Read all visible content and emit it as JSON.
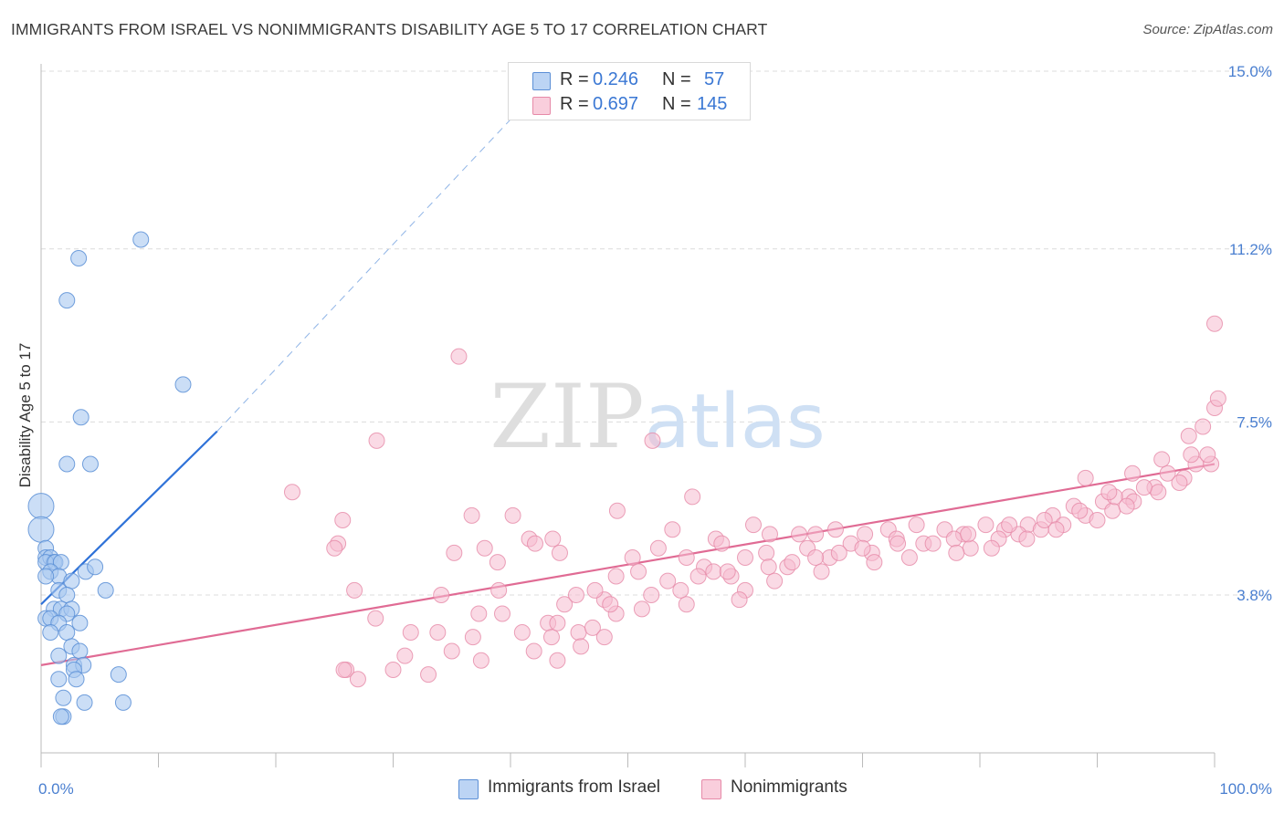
{
  "title": "IMMIGRANTS FROM ISRAEL VS NONIMMIGRANTS DISABILITY AGE 5 TO 17 CORRELATION CHART",
  "source": "Source: ZipAtlas.com",
  "watermark": "ZIPatlas",
  "legend": {
    "rows": [
      {
        "r_label": "R =",
        "r_value": "0.246",
        "n_label": "N =",
        "n_value": "57"
      },
      {
        "r_label": "R =",
        "r_value": "0.697",
        "n_label": "N =",
        "n_value": "145"
      }
    ]
  },
  "bottom_legend": [
    "Immigrants from Israel",
    "Nonimmigrants"
  ],
  "colors": {
    "blue_fill": "#a9c8f0",
    "blue_stroke": "#5b8fd6",
    "blue_line": "#2f72d8",
    "pink_fill": "#f6bcd0",
    "pink_stroke": "#e68aa8",
    "pink_line": "#e06b94",
    "tick_text": "#4a7fd0",
    "grid": "#dcdcdc"
  },
  "chart_data": {
    "type": "scatter",
    "title": "IMMIGRANTS FROM ISRAEL VS NONIMMIGRANTS DISABILITY AGE 5 TO 17 CORRELATION CHART",
    "xlabel": "",
    "ylabel": "Disability Age 5 to 17",
    "xlim": [
      0,
      100
    ],
    "ylim": [
      0,
      15.5
    ],
    "x_tick_labels": [
      "0.0%",
      "100.0%"
    ],
    "y_ticks": [
      3.8,
      7.5,
      11.2,
      15.0
    ],
    "y_tick_labels": [
      "3.8%",
      "7.5%",
      "11.2%",
      "15.0%"
    ],
    "grid": true,
    "legend_position": "top-center",
    "series": [
      {
        "name": "Immigrants from Israel",
        "r": 0.246,
        "n": 57,
        "trend": {
          "x": [
            0,
            15
          ],
          "y": [
            3.6,
            7.3
          ]
        },
        "trend_extension": {
          "x": [
            15,
            42
          ],
          "y": [
            7.3,
            14.5
          ]
        },
        "points": [
          [
            0,
            5.7
          ],
          [
            0,
            5.2
          ],
          [
            0.4,
            4.8
          ],
          [
            0.4,
            4.6
          ],
          [
            0.8,
            4.6
          ],
          [
            1.1,
            4.5
          ],
          [
            0.4,
            4.5
          ],
          [
            1.2,
            4.5
          ],
          [
            1.7,
            4.5
          ],
          [
            0.8,
            4.3
          ],
          [
            1.5,
            4.2
          ],
          [
            0.4,
            4.2
          ],
          [
            2.6,
            4.1
          ],
          [
            3.8,
            4.3
          ],
          [
            4.6,
            4.4
          ],
          [
            5.5,
            3.9
          ],
          [
            1.5,
            3.9
          ],
          [
            2.2,
            3.8
          ],
          [
            1.1,
            3.5
          ],
          [
            1.7,
            3.5
          ],
          [
            2.6,
            3.5
          ],
          [
            2.2,
            3.4
          ],
          [
            0.4,
            3.3
          ],
          [
            0.8,
            3.3
          ],
          [
            1.5,
            3.2
          ],
          [
            3.3,
            3.2
          ],
          [
            0.8,
            3.0
          ],
          [
            2.2,
            3.0
          ],
          [
            2.6,
            2.7
          ],
          [
            3.3,
            2.6
          ],
          [
            1.5,
            2.5
          ],
          [
            2.8,
            2.3
          ],
          [
            3.6,
            2.3
          ],
          [
            2.8,
            2.2
          ],
          [
            3.0,
            2.0
          ],
          [
            6.6,
            2.1
          ],
          [
            1.5,
            2.0
          ],
          [
            1.9,
            1.6
          ],
          [
            3.7,
            1.5
          ],
          [
            7.0,
            1.5
          ],
          [
            1.9,
            1.2
          ],
          [
            1.7,
            1.2
          ],
          [
            2.2,
            6.6
          ],
          [
            4.2,
            6.6
          ],
          [
            3.4,
            7.6
          ],
          [
            12.1,
            8.3
          ],
          [
            2.2,
            10.1
          ],
          [
            3.2,
            11.0
          ],
          [
            8.5,
            11.4
          ]
        ]
      },
      {
        "name": "Nonimmigrants",
        "r": 0.697,
        "n": 145,
        "trend": {
          "x": [
            0,
            100
          ],
          "y": [
            2.3,
            6.6
          ]
        },
        "points": [
          [
            35.6,
            8.9
          ],
          [
            28.6,
            7.1
          ],
          [
            52.1,
            7.1
          ],
          [
            21.4,
            6.0
          ],
          [
            25.7,
            5.4
          ],
          [
            36.7,
            5.5
          ],
          [
            40.2,
            5.5
          ],
          [
            49.1,
            5.6
          ],
          [
            55.5,
            5.9
          ],
          [
            25.3,
            4.9
          ],
          [
            25.0,
            4.8
          ],
          [
            35.2,
            4.7
          ],
          [
            37.8,
            4.8
          ],
          [
            41.6,
            5.0
          ],
          [
            43.6,
            5.0
          ],
          [
            38.9,
            4.5
          ],
          [
            42.1,
            4.9
          ],
          [
            44.2,
            4.7
          ],
          [
            53.8,
            5.2
          ],
          [
            57.5,
            5.0
          ],
          [
            52.6,
            4.8
          ],
          [
            50.4,
            4.6
          ],
          [
            55.0,
            4.6
          ],
          [
            58.0,
            4.9
          ],
          [
            60.7,
            5.3
          ],
          [
            62.1,
            5.1
          ],
          [
            64.6,
            5.1
          ],
          [
            66.0,
            5.1
          ],
          [
            67.7,
            5.2
          ],
          [
            70.2,
            5.1
          ],
          [
            72.2,
            5.2
          ],
          [
            74.6,
            5.3
          ],
          [
            77.0,
            5.2
          ],
          [
            78.6,
            5.1
          ],
          [
            80.5,
            5.3
          ],
          [
            82.1,
            5.2
          ],
          [
            84.1,
            5.3
          ],
          [
            86.2,
            5.5
          ],
          [
            88.0,
            5.7
          ],
          [
            90.5,
            5.8
          ],
          [
            92.7,
            5.9
          ],
          [
            94.9,
            6.1
          ],
          [
            97.4,
            6.3
          ],
          [
            99.7,
            6.6
          ],
          [
            26.7,
            3.9
          ],
          [
            34.1,
            3.8
          ],
          [
            37.3,
            3.4
          ],
          [
            44.6,
            3.6
          ],
          [
            48.0,
            3.7
          ],
          [
            45.6,
            3.8
          ],
          [
            47.2,
            3.9
          ],
          [
            49.0,
            4.2
          ],
          [
            50.9,
            4.3
          ],
          [
            53.4,
            4.1
          ],
          [
            56.5,
            4.4
          ],
          [
            57.3,
            4.3
          ],
          [
            58.8,
            4.2
          ],
          [
            60.0,
            4.6
          ],
          [
            61.8,
            4.7
          ],
          [
            63.6,
            4.4
          ],
          [
            65.3,
            4.8
          ],
          [
            67.2,
            4.6
          ],
          [
            69.0,
            4.9
          ],
          [
            70.8,
            4.7
          ],
          [
            72.9,
            5.0
          ],
          [
            75.2,
            4.9
          ],
          [
            77.8,
            5.0
          ],
          [
            79.2,
            4.8
          ],
          [
            81.6,
            5.0
          ],
          [
            83.3,
            5.1
          ],
          [
            85.2,
            5.2
          ],
          [
            87.1,
            5.3
          ],
          [
            89.0,
            5.5
          ],
          [
            91.3,
            5.6
          ],
          [
            93.1,
            5.8
          ],
          [
            95.2,
            6.0
          ],
          [
            97.0,
            6.2
          ],
          [
            98.4,
            6.6
          ],
          [
            99.4,
            6.8
          ],
          [
            28.5,
            3.3
          ],
          [
            31.5,
            3.0
          ],
          [
            33.8,
            3.0
          ],
          [
            36.8,
            2.9
          ],
          [
            39.3,
            3.4
          ],
          [
            41.0,
            3.0
          ],
          [
            43.2,
            3.2
          ],
          [
            45.8,
            3.0
          ],
          [
            47.0,
            3.1
          ],
          [
            49.0,
            3.4
          ],
          [
            51.2,
            3.5
          ],
          [
            26.0,
            2.2
          ],
          [
            27.0,
            2.0
          ],
          [
            30.0,
            2.2
          ],
          [
            31.0,
            2.5
          ],
          [
            33.0,
            2.1
          ],
          [
            35.0,
            2.6
          ],
          [
            37.5,
            2.4
          ],
          [
            42.0,
            2.6
          ],
          [
            44.0,
            2.4
          ],
          [
            46.0,
            2.7
          ],
          [
            48.0,
            2.9
          ],
          [
            43.5,
            2.9
          ],
          [
            25.8,
            2.2
          ],
          [
            54.5,
            3.9
          ],
          [
            56.0,
            4.2
          ],
          [
            58.5,
            4.3
          ],
          [
            62.0,
            4.4
          ],
          [
            64.0,
            4.5
          ],
          [
            66.0,
            4.6
          ],
          [
            68.0,
            4.7
          ],
          [
            70.0,
            4.8
          ],
          [
            73.0,
            4.9
          ],
          [
            76.0,
            4.9
          ],
          [
            79.0,
            5.1
          ],
          [
            82.5,
            5.3
          ],
          [
            85.5,
            5.4
          ],
          [
            88.5,
            5.6
          ],
          [
            91.5,
            5.9
          ],
          [
            94.0,
            6.1
          ],
          [
            96.0,
            6.4
          ],
          [
            98.0,
            6.8
          ],
          [
            89.0,
            6.3
          ],
          [
            91.0,
            6.0
          ],
          [
            93.0,
            6.4
          ],
          [
            95.5,
            6.7
          ],
          [
            97.8,
            7.2
          ],
          [
            99.0,
            7.4
          ],
          [
            100.0,
            7.8
          ],
          [
            100.3,
            8.0
          ],
          [
            100.0,
            9.6
          ],
          [
            60.0,
            3.9
          ],
          [
            62.5,
            4.1
          ],
          [
            66.5,
            4.3
          ],
          [
            71.0,
            4.5
          ],
          [
            74.0,
            4.6
          ],
          [
            78.0,
            4.7
          ],
          [
            81.0,
            4.8
          ],
          [
            84.0,
            5.0
          ],
          [
            86.5,
            5.2
          ],
          [
            90.0,
            5.4
          ],
          [
            92.5,
            5.7
          ],
          [
            59.5,
            3.7
          ],
          [
            48.5,
            3.6
          ],
          [
            52.0,
            3.8
          ],
          [
            55.0,
            3.6
          ],
          [
            44.0,
            3.2
          ],
          [
            39.0,
            3.9
          ]
        ]
      }
    ]
  }
}
